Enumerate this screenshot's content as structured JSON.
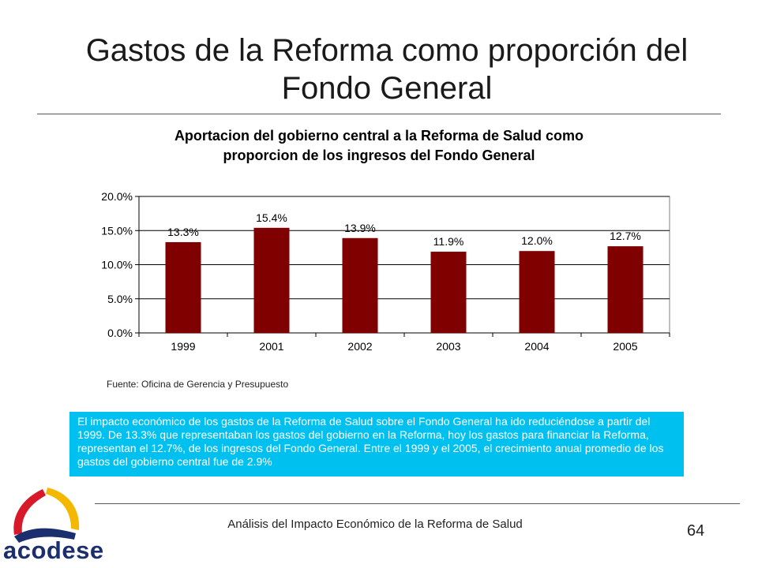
{
  "slide": {
    "title_line1": "Gastos de la Reforma como proporción del",
    "title_line2": "Fondo General",
    "source": "Fuente: Oficina de Gerencia y Presupuesto",
    "summary": "El impacto económico de los gastos de la Reforma de Salud sobre el Fondo General ha ido reduciéndose a partir del 1999.  De 13.3% que representaban los gastos del gobierno en la Reforma, hoy los gastos para financiar la Reforma, representan el 12.7%, de los ingresos del Fondo General. Entre el 1999 y el 2005, el crecimiento anual promedio de los gastos del gobierno central fue de 2.9%",
    "footer": "Análisis del Impacto Económico de la Reforma de Salud",
    "page_number": "64",
    "logo_text": "acodese"
  },
  "colors": {
    "bar": "#800000",
    "info_box": "#00c0f0",
    "logo_navy": "#1b2f6e",
    "logo_red": "#d8192a",
    "logo_yellow": "#f5b800"
  },
  "chart_data": {
    "type": "bar",
    "title_line1": "Aportacion del gobierno central a la Reforma de Salud como",
    "title_line2": "proporcion de los ingresos del Fondo General",
    "categories": [
      "1999",
      "2001",
      "2002",
      "2003",
      "2004",
      "2005"
    ],
    "values": [
      13.3,
      15.4,
      13.9,
      11.9,
      12.0,
      12.7
    ],
    "data_labels": [
      "13.3%",
      "15.4%",
      "13.9%",
      "11.9%",
      "12.0%",
      "12.7%"
    ],
    "y_ticks": [
      0,
      5,
      10,
      15,
      20
    ],
    "y_tick_labels": [
      "0.0%",
      "5.0%",
      "10.0%",
      "15.0%",
      "20.0%"
    ],
    "ylim": [
      0,
      20
    ],
    "grid": true,
    "legend": false,
    "xlabel": "",
    "ylabel": ""
  }
}
